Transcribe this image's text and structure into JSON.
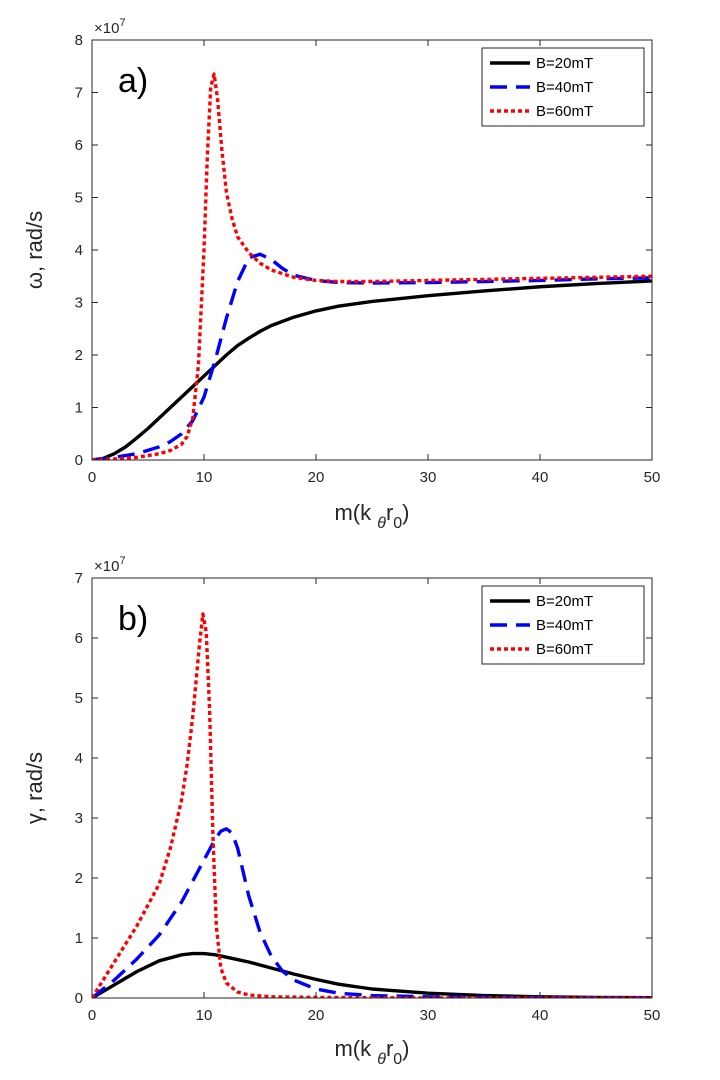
{
  "chart_data": [
    {
      "type": "line",
      "panel_label": "a)",
      "title": "",
      "xlabel": "m(k θr 0)",
      "xlabel_parts": {
        "base": "m(k ",
        "sub1": "θ",
        "mid": "r",
        "sub2": "0",
        "end": ")"
      },
      "ylabel": "ω, rad/s",
      "xlim": [
        0,
        50
      ],
      "ylim": [
        0,
        8
      ],
      "xticks": [
        0,
        10,
        20,
        30,
        40,
        50
      ],
      "yticks": [
        0,
        1,
        2,
        3,
        4,
        5,
        6,
        7,
        8
      ],
      "exponent": {
        "base": "×10",
        "power": "7"
      },
      "legend_position": "top-right",
      "grid": false,
      "series": [
        {
          "name": "B=20mT",
          "color": "#000000",
          "style": "solid",
          "x": [
            0,
            1,
            2,
            3,
            4,
            5,
            6,
            7,
            8,
            9,
            10,
            11,
            12,
            13,
            14,
            15,
            16,
            18,
            20,
            22,
            25,
            30,
            35,
            40,
            45,
            50
          ],
          "y": [
            0,
            0.03,
            0.12,
            0.25,
            0.42,
            0.6,
            0.8,
            1.0,
            1.2,
            1.4,
            1.6,
            1.8,
            2.0,
            2.18,
            2.32,
            2.45,
            2.56,
            2.72,
            2.84,
            2.93,
            3.02,
            3.13,
            3.22,
            3.3,
            3.36,
            3.41
          ]
        },
        {
          "name": "B=40mT",
          "color": "#0000ff",
          "style": "dashed",
          "x": [
            0,
            2,
            4,
            6,
            7,
            8,
            9,
            10,
            11,
            12,
            13,
            14,
            15,
            16,
            17,
            18,
            20,
            22,
            25,
            30,
            35,
            40,
            45,
            50
          ],
          "y": [
            0,
            0.05,
            0.12,
            0.25,
            0.35,
            0.5,
            0.75,
            1.2,
            1.9,
            2.7,
            3.4,
            3.85,
            3.92,
            3.82,
            3.65,
            3.52,
            3.42,
            3.38,
            3.37,
            3.38,
            3.4,
            3.42,
            3.45,
            3.47
          ]
        },
        {
          "name": "B=60mT",
          "color": "#ff0000",
          "style": "dotted",
          "x": [
            0,
            2,
            4,
            6,
            7,
            8,
            8.5,
            9,
            9.5,
            10,
            10.3,
            10.6,
            10.9,
            11.2,
            11.6,
            12,
            12.5,
            13,
            14,
            15,
            16,
            18,
            20,
            22,
            25,
            30,
            35,
            40,
            45,
            50
          ],
          "y": [
            0,
            0.02,
            0.05,
            0.12,
            0.18,
            0.3,
            0.45,
            0.8,
            1.8,
            4.0,
            5.8,
            7.1,
            7.35,
            6.9,
            5.9,
            5.1,
            4.6,
            4.25,
            3.95,
            3.75,
            3.62,
            3.48,
            3.42,
            3.4,
            3.4,
            3.42,
            3.44,
            3.46,
            3.48,
            3.5
          ]
        }
      ]
    },
    {
      "type": "line",
      "panel_label": "b)",
      "title": "",
      "xlabel": "m(k θr 0)",
      "xlabel_parts": {
        "base": "m(k ",
        "sub1": "θ",
        "mid": "r",
        "sub2": "0",
        "end": ")"
      },
      "ylabel": "γ, rad/s",
      "xlim": [
        0,
        50
      ],
      "ylim": [
        0,
        7
      ],
      "xticks": [
        0,
        10,
        20,
        30,
        40,
        50
      ],
      "yticks": [
        0,
        1,
        2,
        3,
        4,
        5,
        6,
        7
      ],
      "exponent": {
        "base": "×10",
        "power": "7"
      },
      "legend_position": "top-right",
      "grid": false,
      "series": [
        {
          "name": "B=20mT",
          "color": "#000000",
          "style": "solid",
          "x": [
            0,
            2,
            4,
            6,
            8,
            9,
            10,
            11,
            12,
            14,
            16,
            18,
            20,
            22,
            25,
            30,
            35,
            40,
            45,
            50
          ],
          "y": [
            0,
            0.22,
            0.44,
            0.62,
            0.72,
            0.74,
            0.74,
            0.72,
            0.68,
            0.6,
            0.5,
            0.4,
            0.31,
            0.23,
            0.15,
            0.08,
            0.04,
            0.02,
            0.01,
            0.005
          ]
        },
        {
          "name": "B=40mT",
          "color": "#0000ff",
          "style": "dashed",
          "x": [
            0,
            2,
            4,
            6,
            8,
            9,
            10,
            11,
            11.5,
            12,
            12.5,
            13,
            13.5,
            14,
            15,
            16,
            17,
            18,
            20,
            22,
            25,
            30,
            40,
            50
          ],
          "y": [
            0,
            0.3,
            0.65,
            1.05,
            1.6,
            1.95,
            2.3,
            2.65,
            2.78,
            2.82,
            2.75,
            2.5,
            2.1,
            1.7,
            1.1,
            0.7,
            0.45,
            0.3,
            0.15,
            0.08,
            0.04,
            0.02,
            0.005,
            0
          ]
        },
        {
          "name": "B=60mT",
          "color": "#ff0000",
          "style": "dotted",
          "x": [
            0,
            2,
            4,
            6,
            7,
            8,
            8.5,
            9,
            9.3,
            9.6,
            9.9,
            10.2,
            10.5,
            10.8,
            11.1,
            11.5,
            12,
            13,
            14,
            16,
            20,
            30,
            40,
            50
          ],
          "y": [
            0,
            0.6,
            1.2,
            1.9,
            2.5,
            3.3,
            3.9,
            4.7,
            5.3,
            5.9,
            6.4,
            6.1,
            4.8,
            2.7,
            1.2,
            0.5,
            0.25,
            0.1,
            0.05,
            0.02,
            0.01,
            0,
            0,
            0
          ]
        }
      ]
    }
  ]
}
